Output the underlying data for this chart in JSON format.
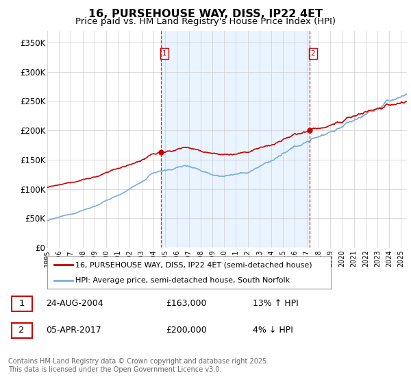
{
  "title": "16, PURSEHOUSE WAY, DISS, IP22 4ET",
  "subtitle": "Price paid vs. HM Land Registry's House Price Index (HPI)",
  "ylim": [
    0,
    370000
  ],
  "yticks": [
    0,
    50000,
    100000,
    150000,
    200000,
    250000,
    300000,
    350000
  ],
  "ytick_labels": [
    "£0",
    "£50K",
    "£100K",
    "£150K",
    "£200K",
    "£250K",
    "£300K",
    "£350K"
  ],
  "line1_color": "#cc0000",
  "line2_color": "#7aabdb",
  "vline_color": "#cc0000",
  "fill_color": "#ddeeff",
  "purchase1_year": 2004.64,
  "purchase1_price": 163000,
  "purchase2_year": 2017.25,
  "purchase2_price": 200000,
  "legend_line1": "16, PURSEHOUSE WAY, DISS, IP22 4ET (semi-detached house)",
  "legend_line2": "HPI: Average price, semi-detached house, South Norfolk",
  "table_row1_num": "1",
  "table_row1_date": "24-AUG-2004",
  "table_row1_price": "£163,000",
  "table_row1_hpi": "13% ↑ HPI",
  "table_row2_num": "2",
  "table_row2_date": "05-APR-2017",
  "table_row2_price": "£200,000",
  "table_row2_hpi": "4% ↓ HPI",
  "footer": "Contains HM Land Registry data © Crown copyright and database right 2025.\nThis data is licensed under the Open Government Licence v3.0.",
  "bg_color": "#ffffff",
  "grid_color": "#cccccc"
}
